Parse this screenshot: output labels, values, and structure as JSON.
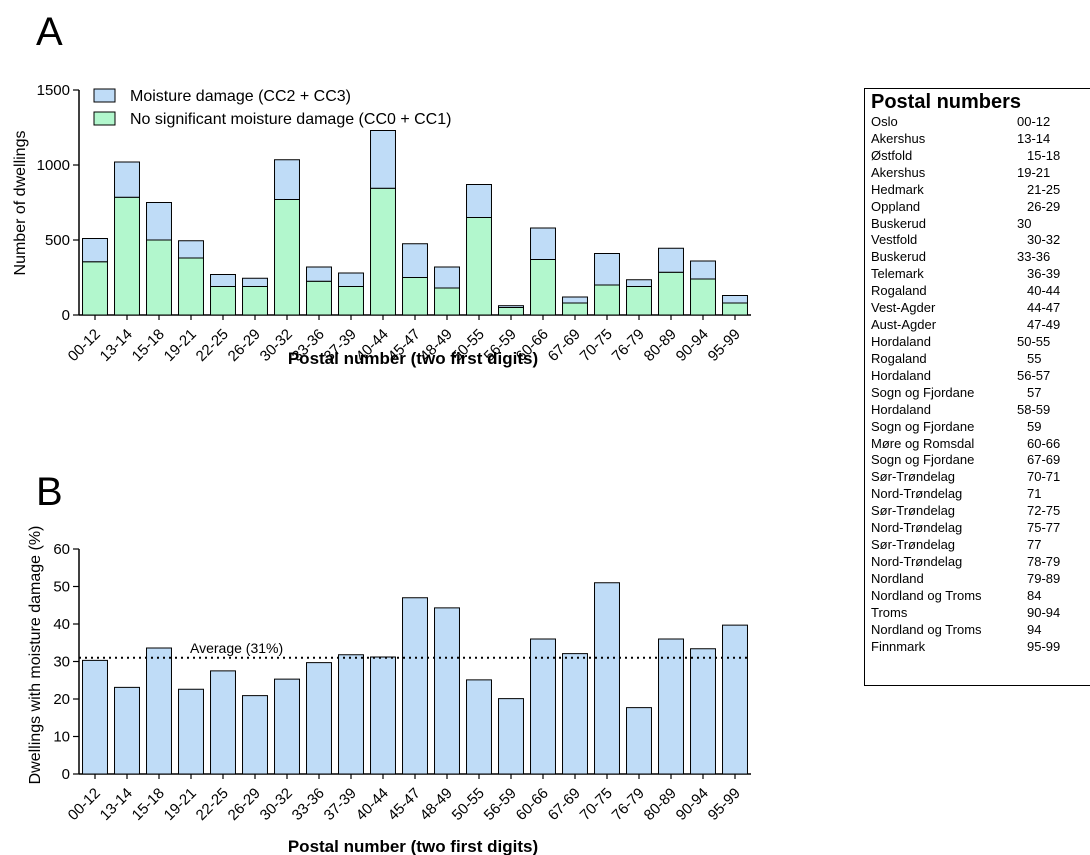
{
  "panel_labels": {
    "a": "A",
    "b": "B"
  },
  "colors": {
    "moisture_fill": "#bfdcf7",
    "no_moisture_fill": "#b2f7cd",
    "percent_fill": "#bfdcf7",
    "outline": "#000000"
  },
  "chart_data": [
    {
      "type": "bar",
      "stacked": true,
      "xlabel": "Postal number (two first digits)",
      "ylabel": "Number of dwellings",
      "ylim": [
        0,
        1500
      ],
      "yticks": [
        0,
        500,
        1000,
        1500
      ],
      "categories": [
        "00-12",
        "13-14",
        "15-18",
        "19-21",
        "22-25",
        "26-29",
        "30-32",
        "33-36",
        "37-39",
        "40-44",
        "45-47",
        "48-49",
        "50-55",
        "56-59",
        "60-66",
        "67-69",
        "70-75",
        "76-79",
        "80-89",
        "90-94",
        "95-99"
      ],
      "series": [
        {
          "name": "No significant moisture damage (CC0 + CC1)",
          "values": [
            355,
            785,
            500,
            380,
            190,
            190,
            770,
            225,
            190,
            845,
            250,
            180,
            650,
            50,
            370,
            80,
            200,
            190,
            285,
            240,
            80
          ]
        },
        {
          "name": "Moisture damage (CC2 + CC3)",
          "values": [
            155,
            235,
            250,
            115,
            80,
            55,
            265,
            95,
            90,
            385,
            225,
            140,
            220,
            12,
            210,
            40,
            210,
            45,
            160,
            120,
            50
          ]
        }
      ],
      "legend_position": "top-left"
    },
    {
      "type": "bar",
      "xlabel": "Postal number (two first digits)",
      "ylabel": "Dwellings with moisture damage (%)",
      "ylim": [
        0,
        60
      ],
      "yticks": [
        0,
        10,
        20,
        30,
        40,
        50,
        60
      ],
      "categories": [
        "00-12",
        "13-14",
        "15-18",
        "19-21",
        "22-25",
        "26-29",
        "30-32",
        "33-36",
        "37-39",
        "40-44",
        "45-47",
        "48-49",
        "50-55",
        "56-59",
        "60-66",
        "67-69",
        "70-75",
        "76-79",
        "80-89",
        "90-94",
        "95-99"
      ],
      "values": [
        30.3,
        23.1,
        33.6,
        22.6,
        27.5,
        20.9,
        25.3,
        29.7,
        31.8,
        31.2,
        47.0,
        44.3,
        25.1,
        20.1,
        36.0,
        32.1,
        51.0,
        17.7,
        36.0,
        33.4,
        39.7
      ],
      "reference_line": {
        "value": 31,
        "label": "Average (31%)"
      }
    }
  ],
  "postal_table": {
    "title": "Postal numbers",
    "rows": [
      {
        "region": "Oslo",
        "code": "00-12",
        "indent": false
      },
      {
        "region": "Akershus",
        "code": "13-14",
        "indent": false
      },
      {
        "region": "Østfold",
        "code": "15-18",
        "indent": true
      },
      {
        "region": "Akershus",
        "code": "19-21",
        "indent": false
      },
      {
        "region": "Hedmark",
        "code": "21-25",
        "indent": true
      },
      {
        "region": "Oppland",
        "code": "26-29",
        "indent": true
      },
      {
        "region": "Buskerud",
        "code": "30",
        "indent": false
      },
      {
        "region": "Vestfold",
        "code": "30-32",
        "indent": true
      },
      {
        "region": "Buskerud",
        "code": "33-36",
        "indent": false
      },
      {
        "region": "Telemark",
        "code": "36-39",
        "indent": true
      },
      {
        "region": "Rogaland",
        "code": "40-44",
        "indent": true
      },
      {
        "region": "Vest-Agder",
        "code": "44-47",
        "indent": true
      },
      {
        "region": "Aust-Agder",
        "code": "47-49",
        "indent": true
      },
      {
        "region": "Hordaland",
        "code": "50-55",
        "indent": false
      },
      {
        "region": "Rogaland",
        "code": "55",
        "indent": true
      },
      {
        "region": "Hordaland",
        "code": "56-57",
        "indent": false
      },
      {
        "region": "Sogn og Fjordane",
        "code": "57",
        "indent": true
      },
      {
        "region": "Hordaland",
        "code": "58-59",
        "indent": false
      },
      {
        "region": "Sogn og Fjordane",
        "code": "59",
        "indent": true
      },
      {
        "region": "Møre og Romsdal",
        "code": "60-66",
        "indent": true
      },
      {
        "region": "Sogn og Fjordane",
        "code": "67-69",
        "indent": true
      },
      {
        "region": "Sør-Trøndelag",
        "code": "70-71",
        "indent": true
      },
      {
        "region": "Nord-Trøndelag",
        "code": "71",
        "indent": true
      },
      {
        "region": "Sør-Trøndelag",
        "code": "72-75",
        "indent": true
      },
      {
        "region": "Nord-Trøndelag",
        "code": "75-77",
        "indent": true
      },
      {
        "region": "Sør-Trøndelag",
        "code": "77",
        "indent": true
      },
      {
        "region": "Nord-Trøndelag",
        "code": "78-79",
        "indent": true
      },
      {
        "region": "Nordland",
        "code": "79-89",
        "indent": true
      },
      {
        "region": "Nordland og Troms",
        "code": "84",
        "indent": true
      },
      {
        "region": "Troms",
        "code": "90-94",
        "indent": true
      },
      {
        "region": "Nordland og Troms",
        "code": "94",
        "indent": true
      },
      {
        "region": "Finnmark",
        "code": "95-99",
        "indent": true
      }
    ]
  }
}
